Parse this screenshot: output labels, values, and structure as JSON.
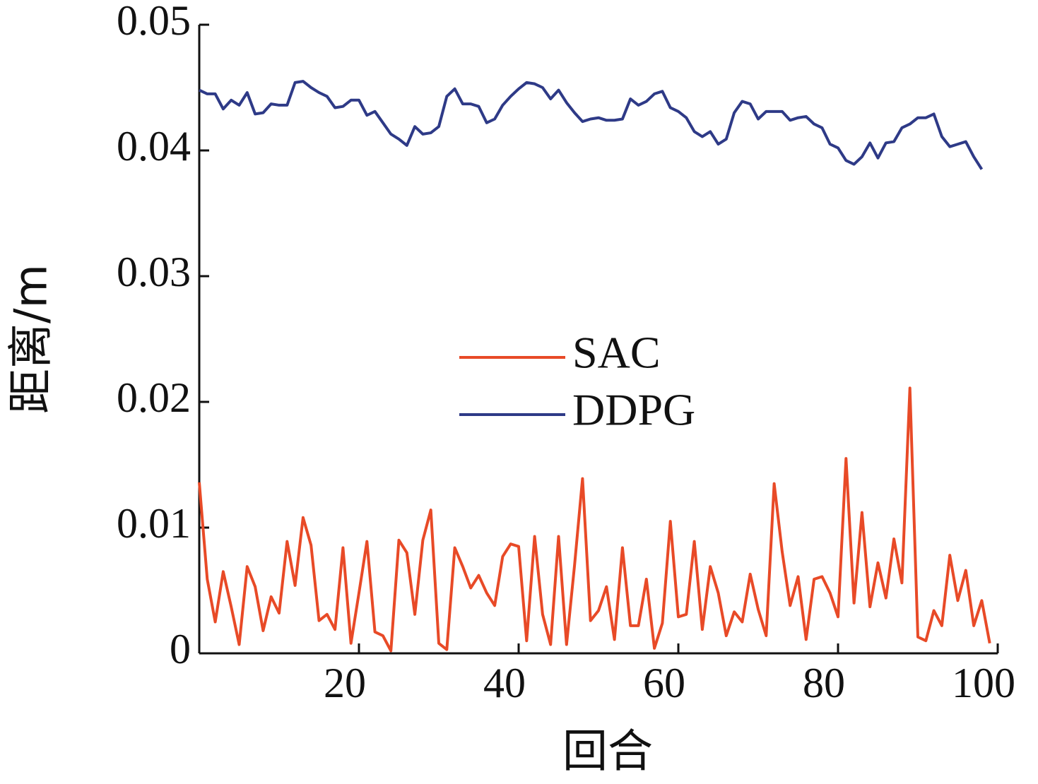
{
  "chart_data": {
    "type": "line",
    "xlabel": "回合",
    "ylabel": "距离/m",
    "x": [
      0,
      1,
      2,
      3,
      4,
      5,
      6,
      7,
      8,
      9,
      10,
      11,
      12,
      13,
      14,
      15,
      16,
      17,
      18,
      19,
      20,
      21,
      22,
      23,
      24,
      25,
      26,
      27,
      28,
      29,
      30,
      31,
      32,
      33,
      34,
      35,
      36,
      37,
      38,
      39,
      40,
      41,
      42,
      43,
      44,
      45,
      46,
      47,
      48,
      49,
      50,
      51,
      52,
      53,
      54,
      55,
      56,
      57,
      58,
      59,
      60,
      61,
      62,
      63,
      64,
      65,
      66,
      67,
      68,
      69,
      70,
      71,
      72,
      73,
      74,
      75,
      76,
      77,
      78,
      79,
      80,
      81,
      82,
      83,
      84,
      85,
      86,
      87,
      88,
      89,
      90,
      91,
      92,
      93,
      94,
      95,
      96,
      97,
      98,
      99
    ],
    "series": [
      {
        "name": "SAC",
        "color": "#e84a27",
        "values": [
          0.0136,
          0.0059,
          0.0025,
          0.0065,
          0.0037,
          0.0007,
          0.0069,
          0.0053,
          0.0018,
          0.0045,
          0.0032,
          0.0089,
          0.0054,
          0.0108,
          0.0086,
          0.0026,
          0.0031,
          0.0019,
          0.0084,
          0.0008,
          0.0048,
          0.0089,
          0.0017,
          0.0014,
          0.0002,
          0.009,
          0.008,
          0.0031,
          0.009,
          0.0114,
          0.0008,
          0.0003,
          0.0084,
          0.0069,
          0.0052,
          0.0062,
          0.0048,
          0.0038,
          0.0077,
          0.0087,
          0.0085,
          0.001,
          0.0093,
          0.0031,
          0.0007,
          0.0093,
          0.0007,
          0.007,
          0.0139,
          0.0026,
          0.0034,
          0.0053,
          0.0011,
          0.0084,
          0.0022,
          0.0022,
          0.0059,
          0.0004,
          0.0024,
          0.0105,
          0.0029,
          0.0031,
          0.0089,
          0.0019,
          0.0069,
          0.0048,
          0.0014,
          0.0033,
          0.0025,
          0.0063,
          0.0035,
          0.0014,
          0.0135,
          0.0081,
          0.0038,
          0.0061,
          0.0011,
          0.0059,
          0.0061,
          0.0048,
          0.0029,
          0.0155,
          0.004,
          0.0112,
          0.0037,
          0.0072,
          0.0044,
          0.0091,
          0.0056,
          0.0211,
          0.0013,
          0.001,
          0.0034,
          0.0022,
          0.0078,
          0.0042,
          0.0066,
          0.0022,
          0.0042,
          0.0008
        ]
      },
      {
        "name": "DDPG",
        "color": "#2e3a87",
        "values": [
          0.0448,
          0.0445,
          0.0445,
          0.0433,
          0.044,
          0.0436,
          0.0446,
          0.0429,
          0.043,
          0.0437,
          0.0436,
          0.0436,
          0.0454,
          0.0455,
          0.045,
          0.0446,
          0.0443,
          0.0434,
          0.0435,
          0.044,
          0.044,
          0.0428,
          0.0431,
          0.0422,
          0.0413,
          0.0409,
          0.0404,
          0.0419,
          0.0413,
          0.0414,
          0.0419,
          0.0443,
          0.0449,
          0.0437,
          0.0437,
          0.0435,
          0.0422,
          0.0425,
          0.0436,
          0.0443,
          0.0449,
          0.0454,
          0.0453,
          0.045,
          0.0441,
          0.0448,
          0.0438,
          0.043,
          0.0423,
          0.0425,
          0.0426,
          0.0424,
          0.0424,
          0.0425,
          0.0441,
          0.0436,
          0.0439,
          0.0445,
          0.0447,
          0.0434,
          0.0431,
          0.0426,
          0.0415,
          0.0411,
          0.0415,
          0.0405,
          0.0409,
          0.043,
          0.0439,
          0.0437,
          0.0425,
          0.0431,
          0.0431,
          0.0431,
          0.0424,
          0.0426,
          0.0427,
          0.0421,
          0.0418,
          0.0405,
          0.0402,
          0.0392,
          0.0389,
          0.0395,
          0.0406,
          0.0394,
          0.0406,
          0.0407,
          0.0418,
          0.0421,
          0.0426,
          0.0426,
          0.0429,
          0.0411,
          0.0403,
          0.0405,
          0.0407,
          0.0395,
          0.0385,
          null
        ]
      }
    ],
    "xlim": [
      0,
      100
    ],
    "xticks": [
      20,
      40,
      60,
      80,
      100
    ],
    "ylim": [
      0,
      0.05
    ],
    "yticks": [
      0,
      0.01,
      0.02,
      0.03,
      0.04,
      0.05
    ],
    "grid": false,
    "legend": "center"
  }
}
